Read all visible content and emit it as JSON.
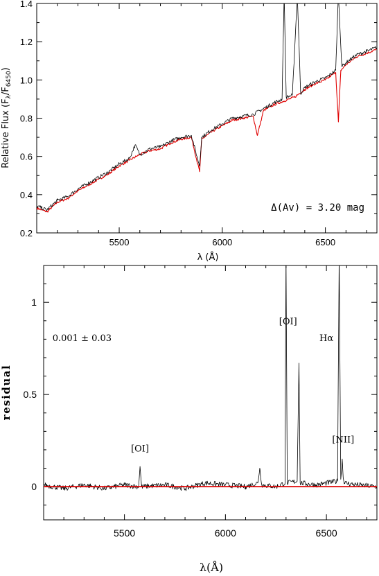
{
  "chart_data": [
    {
      "type": "line",
      "title": "",
      "xlabel": "λ (Å)",
      "ylabel": "Relative Flux (F",
      "ylabel_sub1": "λ",
      "ylabel_mid": "/F",
      "ylabel_sub2": "6450",
      "ylabel_end": ")",
      "xlim": [
        5100,
        6750
      ],
      "ylim": [
        0.2,
        1.4
      ],
      "xticks": [
        5500,
        6000,
        6500
      ],
      "yticks": [
        0.2,
        0.4,
        0.6,
        0.8,
        1.0,
        1.2,
        1.4
      ],
      "ytick_labels": [
        "0.2",
        "0.4",
        "0.6",
        "0.8",
        "1.0",
        "1.2",
        "1.4"
      ],
      "annotation": "Δ(Av) = 3.20 mag",
      "colors": {
        "observed": "#000000",
        "model": "#e00000"
      },
      "series": [
        {
          "color": "#e00000",
          "x": [
            5100,
            5150,
            5200,
            5250,
            5300,
            5350,
            5400,
            5450,
            5500,
            5550,
            5600,
            5650,
            5700,
            5750,
            5800,
            5850,
            5890,
            5900,
            5950,
            6000,
            6050,
            6100,
            6150,
            6170,
            6200,
            6250,
            6300,
            6350,
            6400,
            6450,
            6500,
            6550,
            6563,
            6575,
            6600,
            6650,
            6700,
            6750
          ],
          "y": [
            0.33,
            0.31,
            0.36,
            0.38,
            0.42,
            0.45,
            0.48,
            0.51,
            0.55,
            0.58,
            0.61,
            0.63,
            0.64,
            0.67,
            0.69,
            0.7,
            0.52,
            0.69,
            0.73,
            0.76,
            0.79,
            0.8,
            0.81,
            0.71,
            0.84,
            0.87,
            0.89,
            0.91,
            0.95,
            0.98,
            1.0,
            1.04,
            0.78,
            1.05,
            1.08,
            1.12,
            1.14,
            1.16
          ]
        },
        {
          "color": "#000000",
          "x": [
            5100,
            5150,
            5200,
            5250,
            5300,
            5350,
            5400,
            5450,
            5500,
            5550,
            5577,
            5600,
            5650,
            5700,
            5750,
            5800,
            5850,
            5890,
            5900,
            5950,
            6000,
            6050,
            6100,
            6150,
            6200,
            6250,
            6290,
            6300,
            6310,
            6340,
            6364,
            6380,
            6400,
            6450,
            6500,
            6550,
            6563,
            6580,
            6600,
            6650,
            6700,
            6750
          ],
          "y": [
            0.34,
            0.32,
            0.37,
            0.39,
            0.43,
            0.46,
            0.49,
            0.52,
            0.56,
            0.59,
            0.66,
            0.61,
            0.64,
            0.65,
            0.68,
            0.7,
            0.71,
            0.55,
            0.7,
            0.74,
            0.77,
            0.8,
            0.81,
            0.82,
            0.85,
            0.88,
            0.9,
            1.45,
            0.91,
            0.92,
            1.45,
            0.93,
            0.96,
            0.99,
            1.01,
            1.05,
            1.45,
            1.07,
            1.09,
            1.13,
            1.15,
            1.17
          ]
        }
      ]
    },
    {
      "type": "line",
      "title": "",
      "xlabel": "λ(Å)",
      "ylabel": "residual",
      "xlim": [
        5100,
        6750
      ],
      "ylim": [
        -0.18,
        1.2
      ],
      "xticks": [
        5500,
        6000,
        6500
      ],
      "yticks": [
        0,
        0.5,
        1
      ],
      "ytick_labels": [
        "0",
        "0.5",
        "1"
      ],
      "annotations": [
        {
          "text": "0.001 ± 0.03",
          "x": 5290,
          "y": 0.79
        },
        {
          "text": "[OI]",
          "x": 5577,
          "y": 0.19
        },
        {
          "text": "[OI]",
          "x": 6310,
          "y": 0.88
        },
        {
          "text": "Hα",
          "x": 6500,
          "y": 0.79
        },
        {
          "text": "[NII]",
          "x": 6583,
          "y": 0.24
        }
      ],
      "colors": {
        "residual": "#000000",
        "zero": "#e00000"
      },
      "series": [
        {
          "color": "#000000",
          "x": [
            5100,
            5200,
            5300,
            5400,
            5500,
            5570,
            5577,
            5585,
            5700,
            5800,
            5900,
            6000,
            6100,
            6160,
            6170,
            6180,
            6250,
            6295,
            6300,
            6306,
            6355,
            6364,
            6370,
            6450,
            6555,
            6563,
            6571,
            6578,
            6583,
            6590,
            6650,
            6750
          ],
          "y": [
            0.01,
            -0.01,
            0.01,
            -0.01,
            0.01,
            0.0,
            0.11,
            0.0,
            0.01,
            -0.01,
            0.02,
            0.01,
            0.0,
            0.02,
            0.1,
            0.01,
            0.0,
            0.02,
            1.25,
            0.02,
            0.03,
            0.67,
            0.02,
            0.01,
            0.03,
            1.25,
            0.04,
            0.15,
            0.05,
            0.02,
            0.01,
            0.0
          ]
        },
        {
          "color": "#e00000",
          "x": [
            5100,
            6750
          ],
          "y": [
            0,
            0
          ]
        }
      ]
    }
  ]
}
